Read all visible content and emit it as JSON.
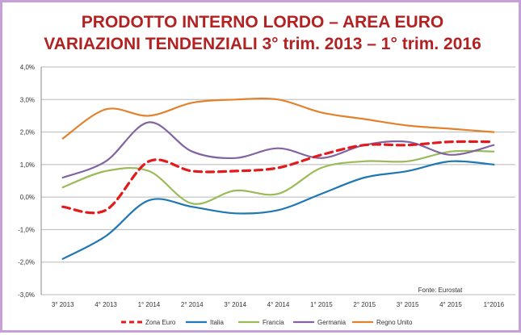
{
  "chart_data": {
    "type": "line",
    "title": "PRODOTTO INTERNO LORDO – AREA EURO",
    "subtitle": "VARIAZIONI TENDENZIALI 3° trim. 2013 – 1° trim. 2016",
    "categories": [
      "3° 2013",
      "4° 2013",
      "1° 2014",
      "2° 2014",
      "3° 2014",
      "4° 2014",
      "1° 2015",
      "2° 2015",
      "3° 2015",
      "4° 2015",
      "1°2016"
    ],
    "ylim": [
      -3.0,
      4.0
    ],
    "yticks": [
      4.0,
      3.0,
      2.0,
      1.0,
      0.0,
      -1.0,
      -2.0,
      -3.0
    ],
    "ytick_labels": [
      "4,0%",
      "3,0%",
      "2,0%",
      "1,0%",
      "0,0%",
      "-1,0%",
      "-2,0%",
      "-3,0%"
    ],
    "grid": true,
    "legend_position": "bottom",
    "source": "Fonte: Eurostat",
    "series": [
      {
        "name": "Zona Euro",
        "color": "#e31a1c",
        "dashed": true,
        "values": [
          -0.3,
          -0.4,
          1.1,
          0.8,
          0.8,
          0.9,
          1.3,
          1.6,
          1.6,
          1.7,
          1.7
        ]
      },
      {
        "name": "Italia",
        "color": "#1f77b4",
        "dashed": false,
        "values": [
          -1.9,
          -1.2,
          -0.1,
          -0.3,
          -0.5,
          -0.4,
          0.1,
          0.6,
          0.8,
          1.1,
          1.0
        ]
      },
      {
        "name": "Francia",
        "color": "#9bbb59",
        "dashed": false,
        "values": [
          0.3,
          0.8,
          0.8,
          -0.2,
          0.2,
          0.1,
          0.9,
          1.1,
          1.1,
          1.4,
          1.4
        ]
      },
      {
        "name": "Germania",
        "color": "#8064a2",
        "dashed": false,
        "values": [
          0.6,
          1.1,
          2.3,
          1.4,
          1.2,
          1.5,
          1.2,
          1.6,
          1.7,
          1.3,
          1.6
        ]
      },
      {
        "name": "Regno Unito",
        "color": "#e3822e",
        "dashed": false,
        "values": [
          1.8,
          2.7,
          2.5,
          2.9,
          3.0,
          3.0,
          2.6,
          2.4,
          2.2,
          2.1,
          2.0
        ]
      }
    ]
  }
}
